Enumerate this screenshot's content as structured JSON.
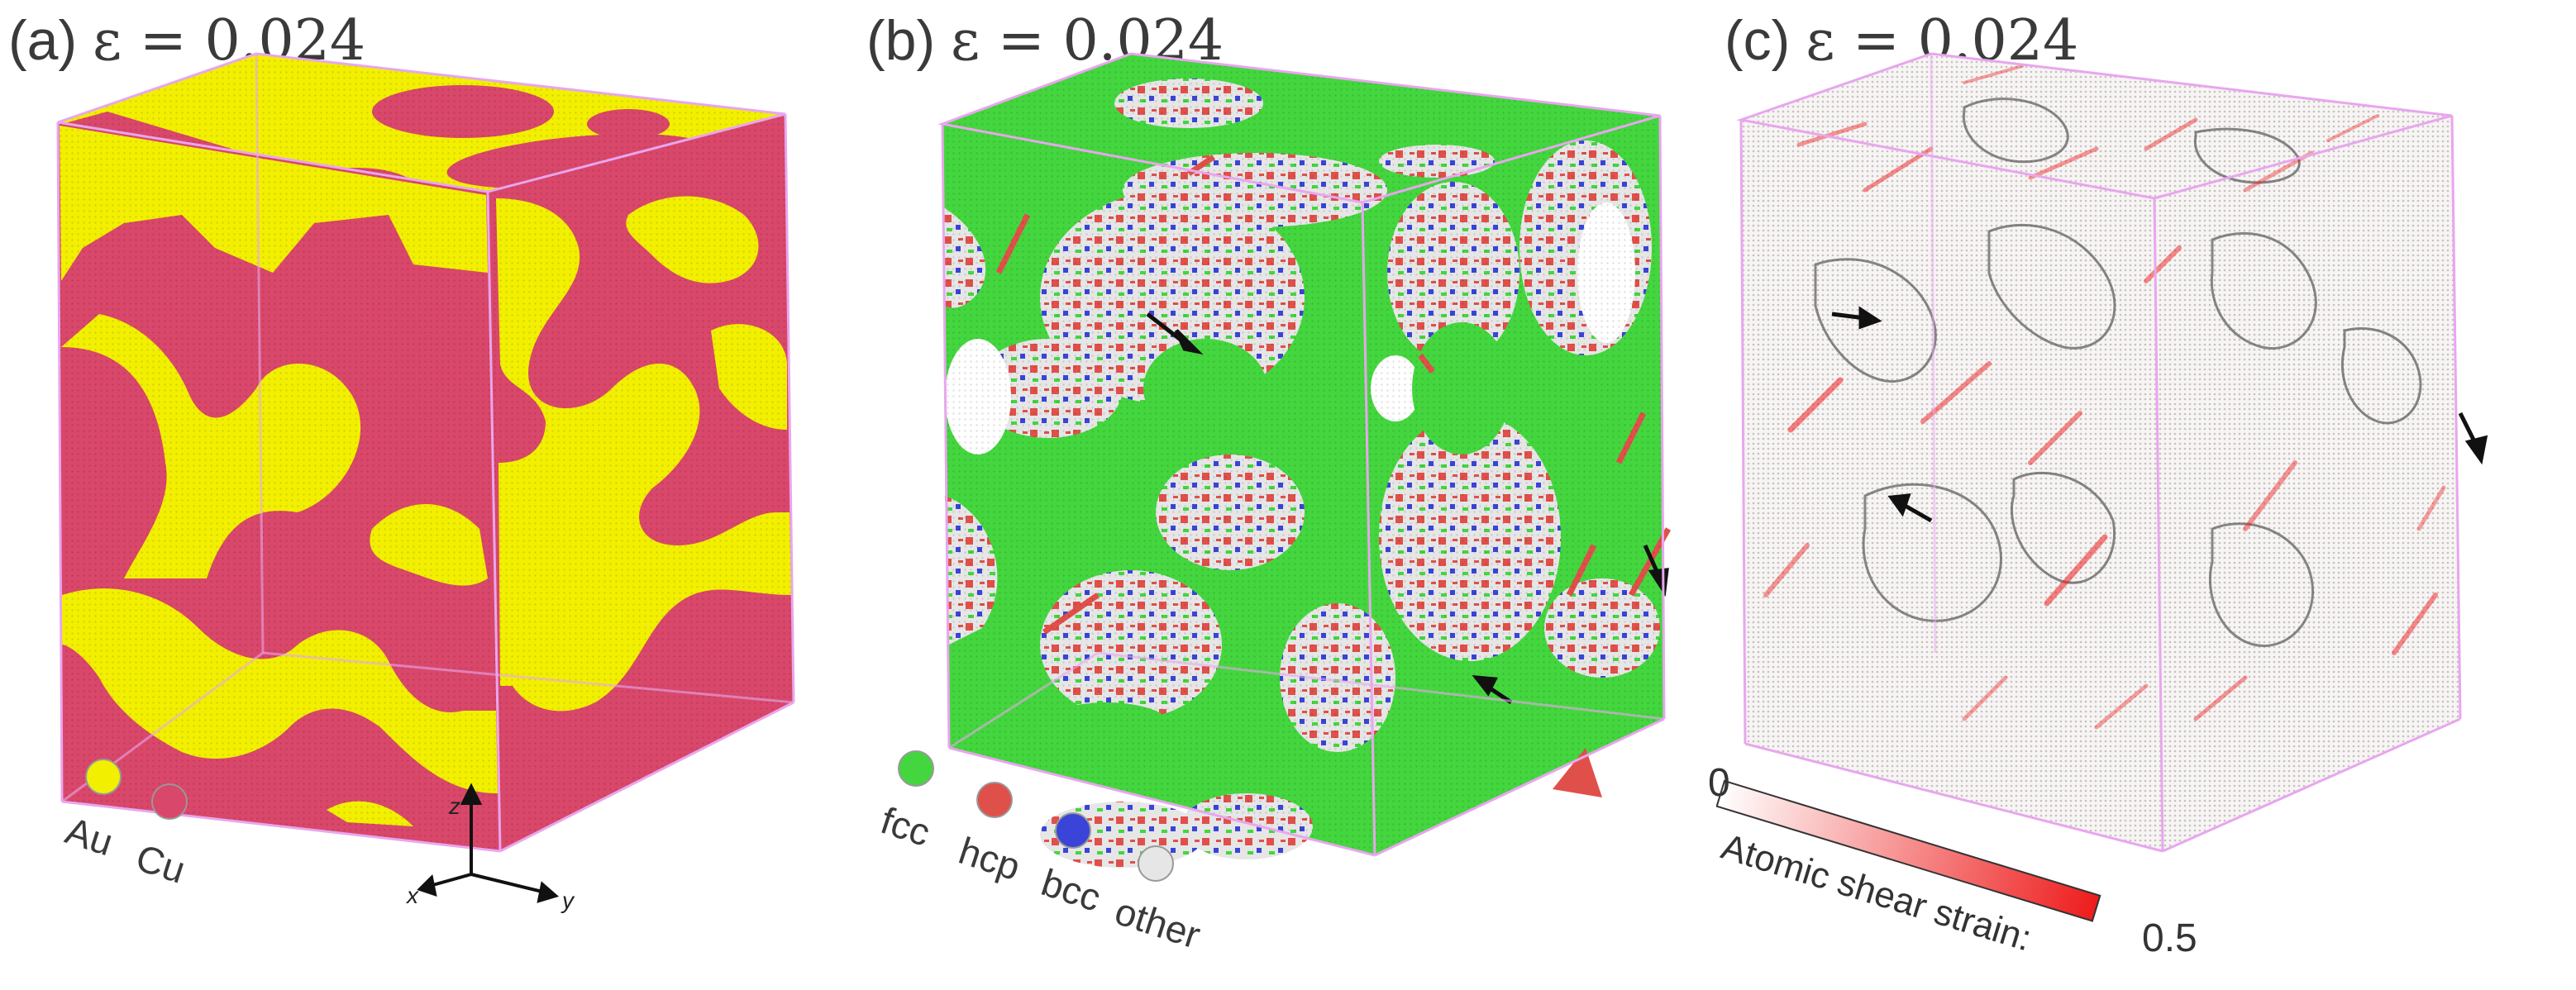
{
  "panels": {
    "a": {
      "label": "(a)",
      "strain": "ε = 0.024",
      "legend": [
        "Au",
        "Cu"
      ],
      "colors": {
        "au": "#f2f000",
        "cu": "#d9476a",
        "box": "#e8a6ee"
      }
    },
    "b": {
      "label": "(b)",
      "strain": "ε = 0.024",
      "legend": [
        "fcc",
        "hcp",
        "bcc",
        "other"
      ],
      "colors": {
        "fcc": "#44d63e",
        "hcp": "#e0504a",
        "bcc": "#3a44d8",
        "other": "#e6e6e6"
      }
    },
    "c": {
      "label": "(c)",
      "strain": "ε = 0.024",
      "colorbar": {
        "min": "0",
        "max": "0.5",
        "label": "Atomic shear strain:"
      },
      "colors": {
        "low": "#ffffff",
        "high": "#ee1c1c"
      }
    }
  },
  "axes": {
    "z": "z",
    "x": "x",
    "y": "y"
  }
}
